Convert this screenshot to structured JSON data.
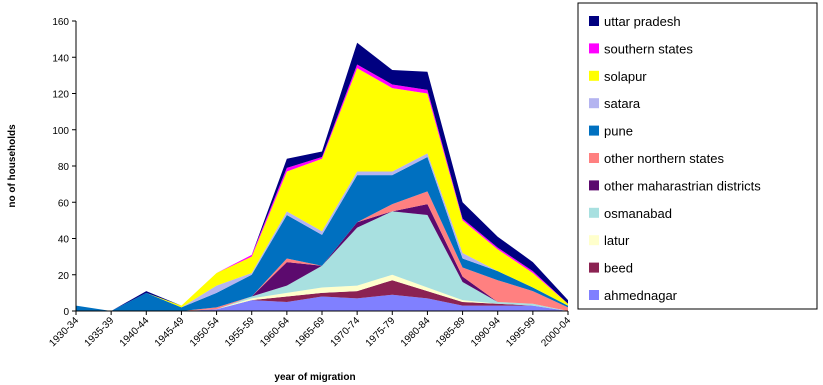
{
  "chart_data": {
    "type": "area",
    "stacked": true,
    "title": "",
    "xlabel": "year of migration",
    "ylabel": "no of households",
    "ylim": [
      0,
      160
    ],
    "yticks": [
      0,
      20,
      40,
      60,
      80,
      100,
      120,
      140,
      160
    ],
    "grid": false,
    "legend_position": "right",
    "categories": [
      "1930-34",
      "1935-39",
      "1940-44",
      "1945-49",
      "1950-54",
      "1955-59",
      "1960-64",
      "1965-69",
      "1970-74",
      "1975-79",
      "1980-84",
      "1985-89",
      "1990-94",
      "1995-99",
      "2000-04"
    ],
    "series": [
      {
        "name": "ahmednagar",
        "color": "#8080ff",
        "values": [
          0,
          0,
          0,
          0,
          1,
          6,
          5,
          8,
          7,
          9,
          7,
          3,
          3,
          3,
          0
        ]
      },
      {
        "name": "beed",
        "color": "#8b2252",
        "values": [
          0,
          0,
          0,
          0,
          0,
          0,
          3,
          2,
          4,
          8,
          4,
          2,
          1,
          0,
          0
        ]
      },
      {
        "name": "latur",
        "color": "#ffffcc",
        "values": [
          0,
          0,
          0,
          0,
          0,
          1,
          2,
          3,
          3,
          3,
          2,
          1,
          0,
          0,
          0
        ]
      },
      {
        "name": "osmanabad",
        "color": "#a8e0e0",
        "values": [
          0,
          0,
          0,
          0,
          0,
          1,
          4,
          12,
          32,
          35,
          40,
          10,
          1,
          1,
          0
        ]
      },
      {
        "name": "other maharastrian districts",
        "color": "#5c0a6e",
        "values": [
          0,
          0,
          0,
          0,
          0,
          0,
          13,
          0,
          3,
          0,
          6,
          3,
          0,
          0,
          0
        ]
      },
      {
        "name": "other northern states",
        "color": "#ff8080",
        "values": [
          0,
          0,
          0,
          0,
          1,
          0,
          2,
          0,
          0,
          4,
          7,
          5,
          12,
          7,
          2
        ]
      },
      {
        "name": "pune",
        "color": "#0070c0",
        "values": [
          3,
          0,
          10,
          2,
          8,
          12,
          24,
          17,
          26,
          16,
          19,
          5,
          5,
          2,
          1
        ]
      },
      {
        "name": "satara",
        "color": "#b4b4f0",
        "values": [
          0,
          0,
          0,
          0,
          4,
          1,
          2,
          2,
          2,
          2,
          2,
          3,
          0,
          0,
          0
        ]
      },
      {
        "name": "solapur",
        "color": "#ffff00",
        "values": [
          0,
          0,
          0,
          1,
          7,
          9,
          22,
          40,
          57,
          46,
          33,
          18,
          12,
          8,
          1
        ]
      },
      {
        "name": "southern states",
        "color": "#ff00ff",
        "values": [
          0,
          0,
          0,
          0,
          0,
          1,
          2,
          1,
          2,
          2,
          2,
          1,
          1,
          1,
          0
        ]
      },
      {
        "name": "uttar pradesh",
        "color": "#000080",
        "values": [
          0,
          0,
          1,
          0,
          0,
          0,
          5,
          3,
          12,
          8,
          10,
          9,
          6,
          5,
          2
        ]
      }
    ]
  }
}
